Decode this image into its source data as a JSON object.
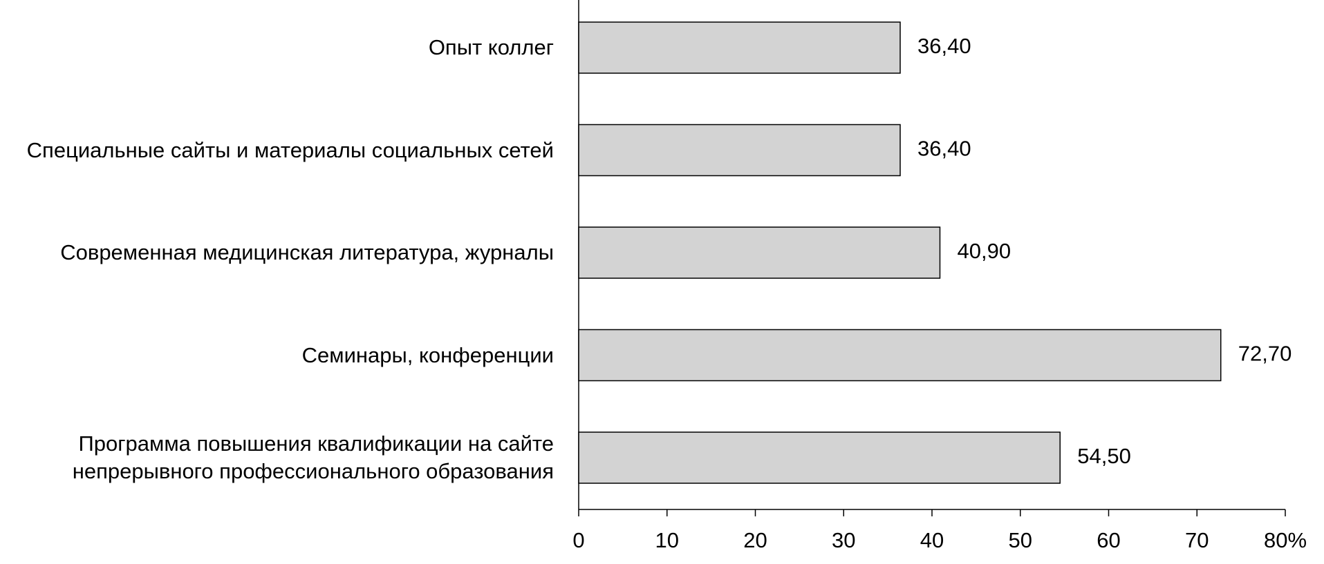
{
  "chart_data": {
    "type": "bar",
    "orientation": "horizontal",
    "categories": [
      "Опыт коллег",
      "Специальные сайты и материалы социальных сетей",
      "Современная медицинская литература, журналы",
      "Семинары, конференции",
      "Программа повышения квалификации на сайте\nнепрерывного профессионального образования"
    ],
    "values": [
      36.4,
      36.4,
      40.9,
      72.7,
      54.5
    ],
    "value_labels": [
      "36,40",
      "36,40",
      "40,90",
      "72,70",
      "54,50"
    ],
    "color": "#d3d3d3",
    "xlim": [
      0,
      80
    ],
    "xticks": [
      0,
      10,
      20,
      30,
      40,
      50,
      60,
      70,
      {
        "value": 80,
        "label": "80%"
      }
    ]
  }
}
